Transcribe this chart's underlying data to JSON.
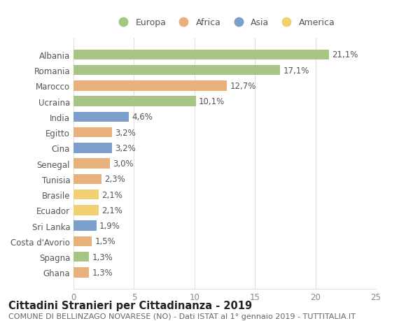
{
  "countries": [
    "Albania",
    "Romania",
    "Marocco",
    "Ucraina",
    "India",
    "Egitto",
    "Cina",
    "Senegal",
    "Tunisia",
    "Brasile",
    "Ecuador",
    "Sri Lanka",
    "Costa d'Avorio",
    "Spagna",
    "Ghana"
  ],
  "values": [
    21.1,
    17.1,
    12.7,
    10.1,
    4.6,
    3.2,
    3.2,
    3.0,
    2.3,
    2.1,
    2.1,
    1.9,
    1.5,
    1.3,
    1.3
  ],
  "labels": [
    "21,1%",
    "17,1%",
    "12,7%",
    "10,1%",
    "4,6%",
    "3,2%",
    "3,2%",
    "3,0%",
    "2,3%",
    "2,1%",
    "2,1%",
    "1,9%",
    "1,5%",
    "1,3%",
    "1,3%"
  ],
  "continents": [
    "Europa",
    "Europa",
    "Africa",
    "Europa",
    "Asia",
    "Africa",
    "Asia",
    "Africa",
    "Africa",
    "America",
    "America",
    "Asia",
    "Africa",
    "Europa",
    "Africa"
  ],
  "colors": {
    "Europa": "#a8c585",
    "Africa": "#e8b07a",
    "Asia": "#7b9fca",
    "America": "#f0d070"
  },
  "xlim": [
    0,
    25
  ],
  "xticks": [
    0,
    5,
    10,
    15,
    20,
    25
  ],
  "title": "Cittadini Stranieri per Cittadinanza - 2019",
  "subtitle": "COMUNE DI BELLINZAGO NOVARESE (NO) - Dati ISTAT al 1° gennaio 2019 - TUTTITALIA.IT",
  "bg_color": "#ffffff",
  "grid_color": "#e0e0e0",
  "bar_height": 0.65,
  "label_fontsize": 8.5,
  "tick_fontsize": 8.5,
  "title_fontsize": 10.5,
  "subtitle_fontsize": 8,
  "legend_order": [
    "Europa",
    "Africa",
    "Asia",
    "America"
  ]
}
